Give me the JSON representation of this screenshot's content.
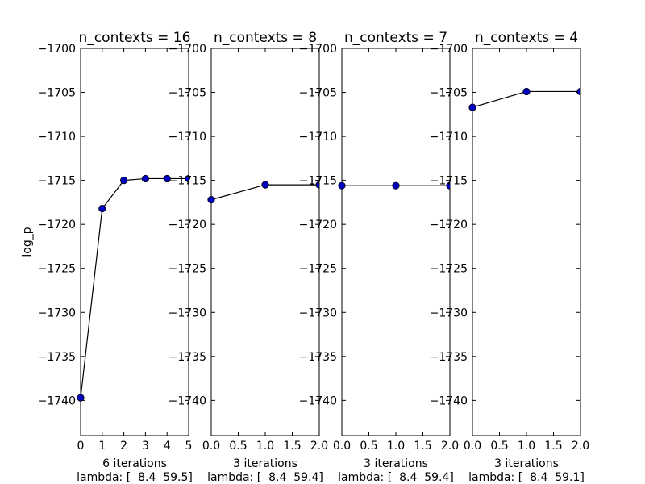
{
  "figure": {
    "background": "#ffffff"
  },
  "style": {
    "line_color": "#000000",
    "marker_color": "#0000bf",
    "marker_edge": "#000000"
  },
  "y_ticks": [
    "−1700",
    "−1705",
    "−1710",
    "−1715",
    "−1720",
    "−1725",
    "−1730",
    "−1735",
    "−1740"
  ],
  "chart_data": [
    {
      "type": "line",
      "title": "n_contexts = 16",
      "ylabel": "log_p",
      "xlabel": "6 iterations",
      "sublabel": "lambda: [  8.4  59.5]",
      "x": [
        0,
        1,
        2,
        3,
        4,
        5
      ],
      "y": [
        -1739.7,
        -1718.2,
        -1715.0,
        -1714.8,
        -1714.8,
        -1714.8
      ],
      "xlim": [
        0,
        5
      ],
      "ylim": [
        -1744,
        -1700
      ],
      "xticks": [
        "0",
        "1",
        "2",
        "3",
        "4",
        "5"
      ],
      "grid": false,
      "marker": "o"
    },
    {
      "type": "line",
      "title": "n_contexts = 8",
      "ylabel": "",
      "xlabel": "3 iterations",
      "sublabel": "lambda: [  8.4  59.4]",
      "x": [
        0,
        1,
        2
      ],
      "y": [
        -1717.2,
        -1715.5,
        -1715.5
      ],
      "xlim": [
        0,
        2
      ],
      "ylim": [
        -1744,
        -1700
      ],
      "xticks": [
        "0.0",
        "0.5",
        "1.0",
        "1.5",
        "2.0"
      ],
      "grid": false,
      "marker": "o"
    },
    {
      "type": "line",
      "title": "n_contexts = 7",
      "ylabel": "",
      "xlabel": "3 iterations",
      "sublabel": "lambda: [  8.4  59.4]",
      "x": [
        0,
        1,
        2
      ],
      "y": [
        -1715.6,
        -1715.6,
        -1715.6
      ],
      "xlim": [
        0,
        2
      ],
      "ylim": [
        -1744,
        -1700
      ],
      "xticks": [
        "0.0",
        "0.5",
        "1.0",
        "1.5",
        "2.0"
      ],
      "grid": false,
      "marker": "o"
    },
    {
      "type": "line",
      "title": "n_contexts = 4",
      "ylabel": "",
      "xlabel": "3 iterations",
      "sublabel": "lambda: [  8.4  59.1]",
      "x": [
        0,
        1,
        2
      ],
      "y": [
        -1706.7,
        -1704.9,
        -1704.9
      ],
      "xlim": [
        0,
        2
      ],
      "ylim": [
        -1744,
        -1700
      ],
      "xticks": [
        "0.0",
        "0.5",
        "1.0",
        "1.5",
        "2.0"
      ],
      "grid": false,
      "marker": "o"
    }
  ]
}
